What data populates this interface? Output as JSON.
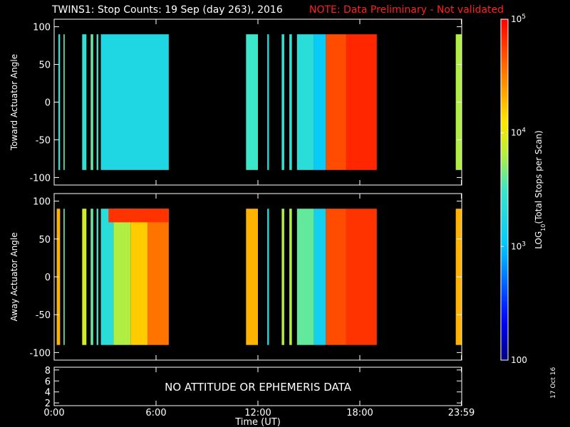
{
  "title": "TWINS1: Stop Counts: 19 Sep (day 263), 2016",
  "note": "NOTE: Data Preliminary - Not validated",
  "date_stamp": "17 Oct 16",
  "chart_data": {
    "type": "heatmap",
    "xlabel": "Time (UT)",
    "x_ticks": [
      "0:00",
      "6:00",
      "12:00",
      "18:00",
      "23:59"
    ],
    "x_tick_hours": [
      0,
      6,
      12,
      18,
      23.98
    ],
    "xlim_hours": [
      0,
      24
    ],
    "colorbar": {
      "label": "LOG10(Total Stops per Scan)",
      "scale": "log",
      "range": [
        100,
        100000
      ],
      "tick_labels": [
        "100",
        "10^3",
        "10^4",
        "10^5"
      ],
      "tick_values": [
        100,
        1000,
        10000,
        100000
      ]
    },
    "panels": [
      {
        "name": "toward",
        "ylabel": "Toward Actuator Angle",
        "ylim": [
          -110,
          110
        ],
        "y_ticks": [
          100,
          50,
          0,
          -50,
          -100
        ],
        "data_blocks": [
          {
            "start": 0.25,
            "end": 0.35,
            "log10": 3.4
          },
          {
            "start": 0.55,
            "end": 0.62,
            "log10": 3.6
          },
          {
            "start": 1.65,
            "end": 1.9,
            "log10": 3.4
          },
          {
            "start": 2.15,
            "end": 2.3,
            "log10": 3.6
          },
          {
            "start": 2.5,
            "end": 2.6,
            "log10": 3.5
          },
          {
            "start": 2.75,
            "end": 6.75,
            "log10": 3.25
          },
          {
            "start": 11.3,
            "end": 12.0,
            "log10": 3.5
          },
          {
            "start": 12.55,
            "end": 12.65,
            "log10": 3.3
          },
          {
            "start": 13.4,
            "end": 13.55,
            "log10": 3.4
          },
          {
            "start": 13.85,
            "end": 14.0,
            "log10": 3.4
          },
          {
            "start": 14.3,
            "end": 15.3,
            "log10": 3.35
          },
          {
            "start": 15.3,
            "end": 16.0,
            "log10": 3.05
          },
          {
            "start": 16.0,
            "end": 17.2,
            "log10": 4.7
          },
          {
            "start": 17.2,
            "end": 19.0,
            "log10": 4.85
          },
          {
            "start": 23.65,
            "end": 24.0,
            "log10": 3.8
          }
        ]
      },
      {
        "name": "away",
        "ylabel": "Away Actuator Angle",
        "ylim": [
          -110,
          110
        ],
        "y_ticks": [
          100,
          50,
          0,
          -50,
          -100
        ],
        "data_blocks": [
          {
            "start": 0.15,
            "end": 0.35,
            "log10": 4.3
          },
          {
            "start": 0.55,
            "end": 0.62,
            "log10": 3.6
          },
          {
            "start": 1.65,
            "end": 1.9,
            "log10": 3.9
          },
          {
            "start": 2.15,
            "end": 2.3,
            "log10": 3.6
          },
          {
            "start": 2.5,
            "end": 2.6,
            "log10": 3.5
          },
          {
            "start": 2.75,
            "end": 3.5,
            "log10": 3.35
          },
          {
            "start": 3.5,
            "end": 4.5,
            "log10": 3.8
          },
          {
            "start": 4.5,
            "end": 5.5,
            "log10": 4.2
          },
          {
            "start": 5.5,
            "end": 6.75,
            "log10": 4.55
          },
          {
            "start": 11.3,
            "end": 12.0,
            "log10": 4.3
          },
          {
            "start": 12.55,
            "end": 12.65,
            "log10": 3.3
          },
          {
            "start": 13.4,
            "end": 13.55,
            "log10": 3.8
          },
          {
            "start": 13.85,
            "end": 14.0,
            "log10": 3.8
          },
          {
            "start": 14.3,
            "end": 15.3,
            "log10": 3.6
          },
          {
            "start": 15.3,
            "end": 16.0,
            "log10": 3.15
          },
          {
            "start": 16.0,
            "end": 17.2,
            "log10": 4.7
          },
          {
            "start": 17.2,
            "end": 19.0,
            "log10": 4.8
          },
          {
            "start": 23.65,
            "end": 24.0,
            "log10": 4.3
          }
        ],
        "band_top": {
          "start": 3.2,
          "end": 6.75,
          "angle_from": 72,
          "angle_to": 90,
          "log10": 4.8
        }
      },
      {
        "name": "attitude",
        "ylim": [
          1.5,
          8.5
        ],
        "y_ticks": [
          8,
          6,
          4,
          2
        ],
        "message": "NO ATTITUDE OR EPHEMERIS DATA"
      }
    ]
  }
}
